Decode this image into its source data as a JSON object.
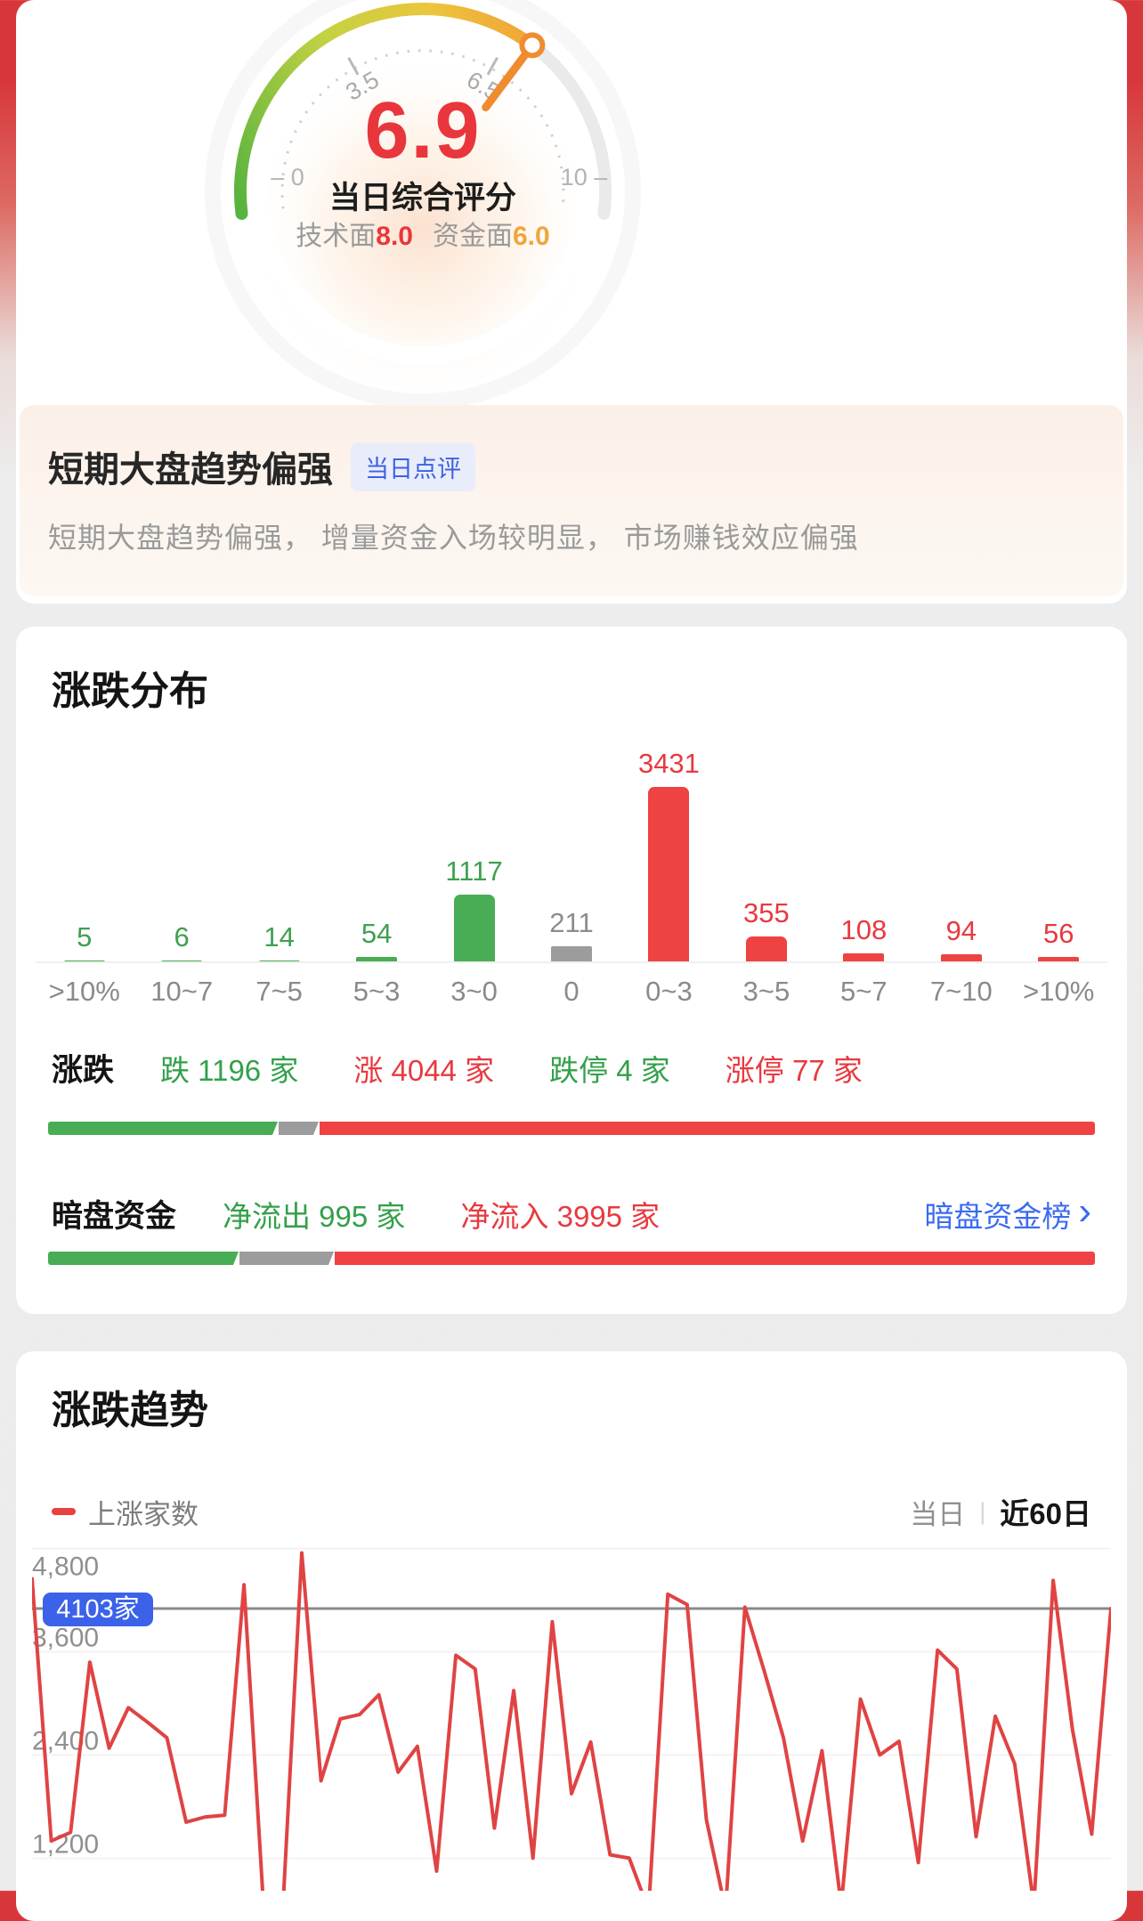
{
  "gauge": {
    "score": "6.9",
    "score_label": "当日综合评分",
    "tech_label": "技术面",
    "tech_value": "8.0",
    "fund_label": "资金面",
    "fund_value": "6.0",
    "start_label": "– 0",
    "end_label": "10 –",
    "tick_labels": [
      "3.5",
      "6.5"
    ]
  },
  "comment": {
    "title": "短期大盘趋势偏强",
    "badge": "当日点评",
    "body": "短期大盘趋势偏强， 增量资金入场较明显， 市场赚钱效应偏强"
  },
  "distribution": {
    "title": "涨跌分布",
    "chart_data": {
      "type": "bar",
      "categories": [
        ">10%",
        "10~7",
        "7~5",
        "5~3",
        "3~0",
        "0",
        "0~3",
        "3~5",
        "5~7",
        "7~10",
        ">10%"
      ],
      "values": [
        5,
        6,
        14,
        54,
        1117,
        211,
        3431,
        355,
        108,
        94,
        56
      ],
      "colors": [
        "green",
        "green",
        "green",
        "green",
        "green",
        "gray",
        "red",
        "red",
        "red",
        "red",
        "red"
      ],
      "max_value": 3431
    },
    "updown": {
      "label": "涨跌",
      "items": [
        {
          "text": "跌 1196 家",
          "color": "green"
        },
        {
          "text": "涨 4044 家",
          "color": "red"
        },
        {
          "text": "跌停 4 家",
          "color": "green"
        },
        {
          "text": "涨停 77 家",
          "color": "red"
        }
      ],
      "bar_percents": [
        22.05,
        3.87,
        74.08
      ]
    },
    "dark_pool": {
      "label": "暗盘资金",
      "items": [
        {
          "text": "净流出 995 家",
          "color": "green"
        },
        {
          "text": "净流入 3995 家",
          "color": "red"
        }
      ],
      "link": "暗盘资金榜",
      "chevron": "›",
      "bar_percents": [
        18.25,
        9.1,
        72.65
      ]
    }
  },
  "trend": {
    "title": "涨跌趋势",
    "legend": "上涨家数",
    "tabs": [
      {
        "label": "当日",
        "active": false
      },
      {
        "label": "近60日",
        "active": true
      }
    ],
    "tab_separator": "|",
    "chart_data": {
      "type": "line",
      "series_name": "上涨家数",
      "y_ticks": [
        "4,800",
        "3,600",
        "2,400",
        "1,200"
      ],
      "y_tick_values": [
        4800,
        3600,
        2400,
        1200
      ],
      "marker": {
        "label": "4103家",
        "value": 4103
      },
      "y_range_visible": [
        860,
        4800
      ],
      "values": [
        4450,
        1400,
        1500,
        3480,
        2480,
        2950,
        2780,
        2600,
        1620,
        1680,
        1700,
        4380,
        700,
        550,
        4750,
        2100,
        2820,
        2870,
        3100,
        2200,
        2500,
        1050,
        3560,
        3400,
        1550,
        3150,
        1200,
        3950,
        1950,
        2550,
        1240,
        1200,
        600,
        4270,
        4150,
        1650,
        600,
        4120,
        3380,
        2600,
        1400,
        2450,
        650,
        3050,
        2400,
        2560,
        1150,
        3620,
        3400,
        1450,
        2850,
        2300,
        650,
        4430,
        2700,
        1480,
        4103
      ]
    }
  },
  "colors": {
    "red_text": "#e8393f",
    "red_bar": "#ef4242",
    "green_text": "#33a04a",
    "green_bar": "#48ad54",
    "gray_bar": "#9c9c9c",
    "blue_link": "#3b6bf0",
    "blue_badge": "#3b62e8",
    "orange": "#f0a63c"
  }
}
